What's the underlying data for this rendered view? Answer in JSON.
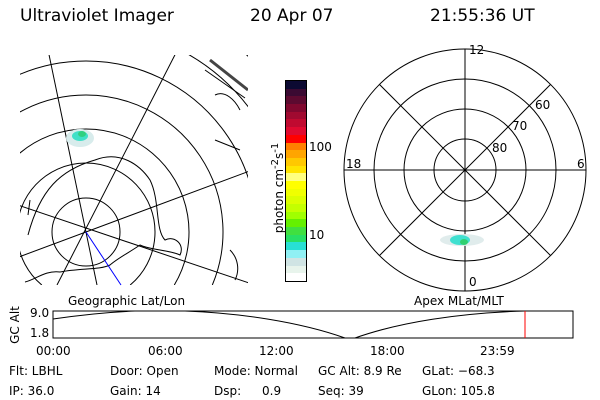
{
  "header": {
    "instrument": "Ultraviolet Imager",
    "date": "20 Apr 07",
    "time": "21:55:36 UT"
  },
  "left_map": {
    "label": "Geographic Lat/Lon",
    "track_color": "#0000ff"
  },
  "right_map": {
    "label": "Apex MLat/MLT",
    "mlt_labels": {
      "top": "12",
      "left": "18",
      "right": "6",
      "bottom": "0"
    },
    "lat_labels": [
      "60",
      "70",
      "80"
    ]
  },
  "colorbar": {
    "unit_label": "photon cm",
    "unit_exp1": "-2",
    "unit_s": "s",
    "unit_exp2": "-1",
    "ticks": [
      "100",
      "10"
    ],
    "scale": "log",
    "colors": [
      "#0c0a32",
      "#3a0a32",
      "#5c0a30",
      "#80082f",
      "#a00a30",
      "#c00a30",
      "#e00a30",
      "#ff0000",
      "#ff7f00",
      "#ffa500",
      "#ffc800",
      "#ffe400",
      "#ffff80",
      "#ffff00",
      "#f0ff00",
      "#dcff00",
      "#c4ff00",
      "#a0ff00",
      "#64f000",
      "#40e040",
      "#28e064",
      "#28e0d4",
      "#90f0f4",
      "#d0e4e4",
      "#e8f4ec",
      "#ffffff"
    ]
  },
  "altitude_plot": {
    "ylabel": "GC Alt",
    "yticks": [
      "9.0",
      "1.8"
    ],
    "xticks": [
      "00:00",
      "06:00",
      "12:00",
      "18:00",
      "23:59"
    ],
    "current_marker_color": "#ff0000"
  },
  "status": {
    "filter": "Flt: LBHL",
    "ip": "IP: 36.0",
    "door": "Door: Open",
    "gain": "Gain: 14",
    "mode": "Mode: Normal",
    "dsp_label": "Dsp:",
    "dsp_value": "0.9",
    "gc_alt": "GC Alt: 8.9 Re",
    "seq": "Seq: 39",
    "glat": "GLat: −68.3",
    "glon": "GLon: 105.8"
  }
}
